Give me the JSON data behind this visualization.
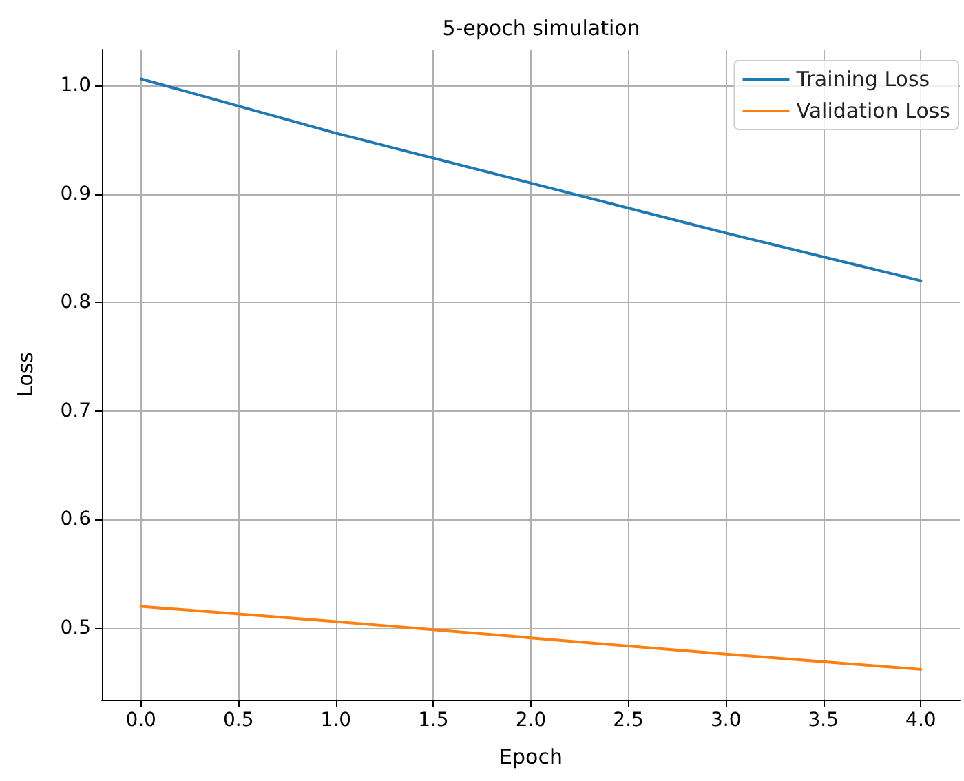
{
  "chart_data": {
    "type": "line",
    "title": "5-epoch simulation",
    "xlabel": "Epoch",
    "ylabel": "Loss",
    "x": [
      0,
      1,
      2,
      3,
      4
    ],
    "series": [
      {
        "name": "Training Loss",
        "color": "#1f77b4",
        "values": [
          1.006,
          0.956,
          0.91,
          0.864,
          0.82
        ]
      },
      {
        "name": "Validation Loss",
        "color": "#ff7f0e",
        "values": [
          0.52,
          0.506,
          0.491,
          0.476,
          0.462
        ]
      }
    ],
    "xlim": [
      -0.2,
      4.2
    ],
    "xticks": [
      {
        "value": 0,
        "label": "0.0"
      },
      {
        "value": 0.5,
        "label": "0.5"
      },
      {
        "value": 1,
        "label": "1.0"
      },
      {
        "value": 1.5,
        "label": "1.5"
      },
      {
        "value": 2,
        "label": "2.0"
      },
      {
        "value": 2.5,
        "label": "2.5"
      },
      {
        "value": 3,
        "label": "3.0"
      },
      {
        "value": 3.5,
        "label": "3.5"
      },
      {
        "value": 4,
        "label": "4.0"
      }
    ],
    "ylim": [
      0.434,
      1.033
    ],
    "yticks": [
      {
        "value": 0.5,
        "label": "0.5"
      },
      {
        "value": 0.6,
        "label": "0.6"
      },
      {
        "value": 0.7,
        "label": "0.7"
      },
      {
        "value": 0.8,
        "label": "0.8"
      },
      {
        "value": 0.9,
        "label": "0.9"
      },
      {
        "value": 1,
        "label": "1.0"
      }
    ],
    "grid": true,
    "legend": "top right",
    "marker": "none",
    "line_style": "solid"
  }
}
